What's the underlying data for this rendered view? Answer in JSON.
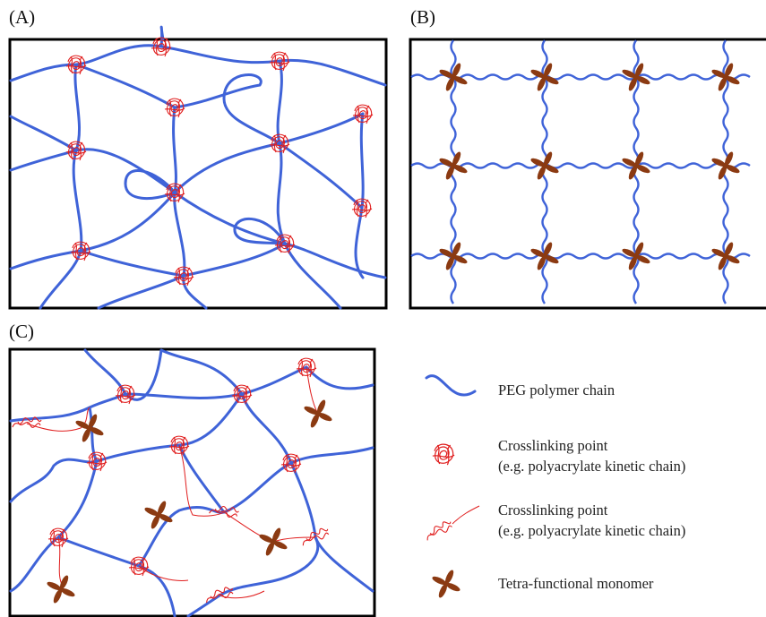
{
  "panels": {
    "a": {
      "label": "(A)"
    },
    "b": {
      "label": "(B)"
    },
    "c": {
      "label": "(C)"
    }
  },
  "legend": {
    "peg_chain": {
      "label": "PEG polymer chain",
      "icon": "wavy-line-icon"
    },
    "crosslink_knot": {
      "line1": "Crosslinking point",
      "line2": "(e.g. polyacrylate kinetic chain)",
      "icon": "tangled-knot-icon"
    },
    "crosslink_extended": {
      "line1": "Crosslinking point",
      "line2": "(e.g. polyacrylate kinetic chain)",
      "icon": "extended-coil-icon"
    },
    "tetra_monomer": {
      "label": "Tetra-functional monomer",
      "icon": "four-lobe-monomer-icon"
    }
  },
  "colors": {
    "peg": "#3f63d8",
    "crosslink": "#e01e1e",
    "monomer": "#8b3a12",
    "frame": "#000000"
  }
}
